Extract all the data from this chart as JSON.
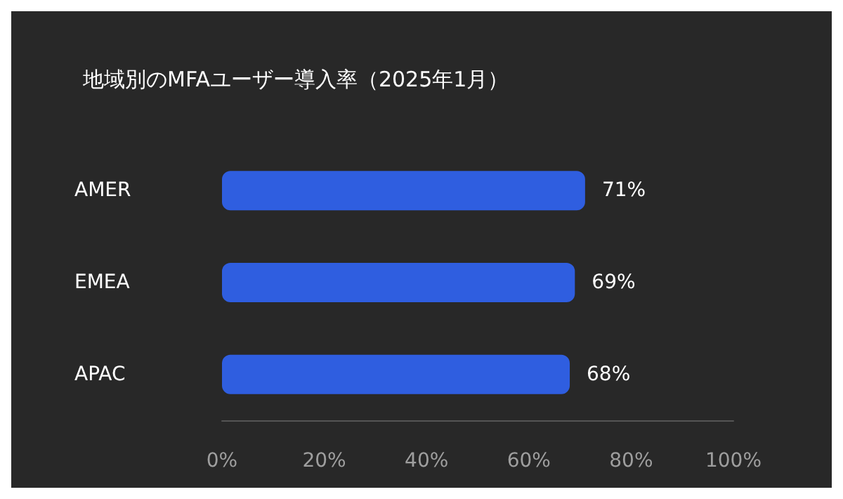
{
  "chart_data": {
    "type": "bar",
    "orientation": "horizontal",
    "title": "地域別のMFAユーザー導入率（2025年1月）",
    "categories": [
      "AMER",
      "EMEA",
      "APAC"
    ],
    "values": [
      71,
      69,
      68
    ],
    "color": "#2f5ee0",
    "value_labels": [
      "71%",
      "69%",
      "68%"
    ],
    "xlim": [
      0,
      100
    ],
    "xticks": [
      {
        "value": 0,
        "label": "0%"
      },
      {
        "value": 20,
        "label": "20%"
      },
      {
        "value": 40,
        "label": "40%"
      },
      {
        "value": 60,
        "label": "60%"
      },
      {
        "value": 80,
        "label": "80%"
      },
      {
        "value": 100,
        "label": "100%"
      }
    ],
    "grid": false
  }
}
